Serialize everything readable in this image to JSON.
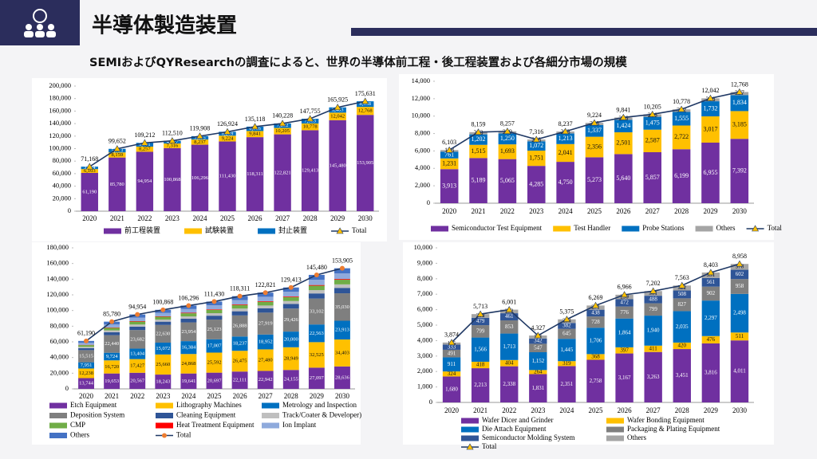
{
  "header": {
    "title": "半導体製造装置",
    "subtitle": "SEMIおよびQYResearchの調査によると、世界の半導体前工程・後工程装置および各細分市場の規模"
  },
  "chart_data": [
    {
      "type": "bar",
      "stacked": true,
      "categories": [
        "2020",
        "2021",
        "2022",
        "2023",
        "2024",
        "2025",
        "2026",
        "2027",
        "2028",
        "2029",
        "2030"
      ],
      "ylim": [
        0,
        200000
      ],
      "yticks": [
        0,
        {
          "value": 20000,
          "label": "20,000"
        },
        {
          "value": 40000,
          "label": "40,000"
        },
        {
          "value": 60000,
          "label": "60,000"
        },
        {
          "value": 80000,
          "label": "80,000"
        },
        {
          "value": 100000,
          "label": "100,000"
        },
        {
          "value": 120000,
          "label": "120,000"
        },
        {
          "value": 140000,
          "label": "140,000"
        },
        {
          "value": 160000,
          "label": "160,000"
        },
        {
          "value": 180000,
          "label": "180,000"
        },
        {
          "value": 200000,
          "label": "200,000"
        }
      ],
      "series": [
        {
          "name": "前工程装置",
          "color": "#7030a0",
          "show_labels": true,
          "values": [
            61190,
            85780,
            94954,
            100868,
            106296,
            111430,
            118311,
            122821,
            129413,
            145480,
            153905
          ],
          "value_labels": [
            "61,190",
            "85,780",
            "94,954",
            "100,868",
            "106,296",
            "111,430",
            "118,311",
            "122,821",
            "129,413",
            "145,480",
            "153,905"
          ]
        },
        {
          "name": "試験装置",
          "color": "#ffc000",
          "show_labels": true,
          "values": [
            6103,
            8159,
            8257,
            7316,
            8237,
            9224,
            9841,
            10205,
            10778,
            12042,
            12768
          ],
          "value_labels": [
            "6,103",
            "8,159",
            "8,257",
            "7,316",
            "8,237",
            "9,224",
            "9,841",
            "10,205",
            "10,778",
            "12,042",
            "12,768"
          ]
        },
        {
          "name": "封止装置",
          "color": "#0070c0",
          "show_labels": true,
          "values": [
            3874,
            5713,
            6001,
            4327,
            5375,
            6269,
            6966,
            7202,
            7563,
            8403,
            8958
          ],
          "value_labels": [
            "3,874",
            "5,713",
            "6,001",
            "4,327",
            "5,375",
            "6,269",
            "6,966",
            "7,202",
            "7,563",
            "8,403",
            "8,958"
          ]
        }
      ],
      "total": {
        "name": "Total",
        "color": "#1f3864",
        "marker": "triangle",
        "marker_color": "#ffc000",
        "values": [
          71168,
          99652,
          109212,
          112510,
          119908,
          126924,
          135118,
          140228,
          147755,
          165925,
          175631
        ],
        "value_labels": [
          "71,168",
          "99,652",
          "109,212",
          "112,510",
          "119,908",
          "126,924",
          "135,118",
          "140,228",
          "147,755",
          "165,925",
          "175,631"
        ]
      }
    },
    {
      "type": "bar",
      "stacked": true,
      "categories": [
        "2020",
        "2021",
        "2022",
        "2023",
        "2024",
        "2025",
        "2026",
        "2027",
        "2028",
        "2029",
        "2030"
      ],
      "ylim": [
        0,
        14000
      ],
      "yticks": [
        0,
        {
          "value": 2000,
          "label": "2,000"
        },
        {
          "value": 4000,
          "label": "4,000"
        },
        {
          "value": 6000,
          "label": "6,000"
        },
        {
          "value": 8000,
          "label": "8,000"
        },
        {
          "value": 10000,
          "label": "10,000"
        },
        {
          "value": 12000,
          "label": "12,000"
        },
        {
          "value": 14000,
          "label": "14,000"
        }
      ],
      "series": [
        {
          "name": "Semiconductor Test Equipment",
          "color": "#7030a0",
          "show_labels": true,
          "values": [
            3913,
            5189,
            5065,
            4285,
            4750,
            5273,
            5640,
            5857,
            6199,
            6955,
            7392
          ],
          "value_labels": [
            "3,913",
            "5,189",
            "5,065",
            "4,285",
            "4,750",
            "5,273",
            "5,640",
            "5,857",
            "6,199",
            "6,955",
            "7,392"
          ]
        },
        {
          "name": "Test Handler",
          "color": "#ffc000",
          "show_labels": true,
          "values": [
            1231,
            1515,
            1693,
            1751,
            2041,
            2356,
            2501,
            2587,
            2722,
            3017,
            3185
          ],
          "value_labels": [
            "1,231",
            "1,515",
            "1,693",
            "1,751",
            "2,041",
            "2,356",
            "2,501",
            "2,587",
            "2,722",
            "3,017",
            "3,185"
          ]
        },
        {
          "name": "Probe Stations",
          "color": "#0070c0",
          "show_labels": true,
          "values": [
            761,
            1202,
            1250,
            1072,
            1213,
            1337,
            1424,
            1475,
            1555,
            1732,
            1834
          ],
          "value_labels": [
            "761",
            "1,202",
            "1,250",
            "1,072",
            "1,213",
            "1,337",
            "1,424",
            "1,475",
            "1,555",
            "1,732",
            "1,834"
          ]
        },
        {
          "name": "Others",
          "color": "#a5a5a5",
          "show_labels": true,
          "values": [
            198,
            253,
            249,
            208,
            233,
            258,
            276,
            286,
            302,
            338,
            357
          ]
        }
      ],
      "total": {
        "name": "Total",
        "color": "#1f3864",
        "marker": "triangle",
        "marker_color": "#ffc000",
        "values": [
          6103,
          8159,
          8257,
          7316,
          8237,
          9224,
          9841,
          10205,
          10778,
          12042,
          12768
        ],
        "value_labels": [
          "6,103",
          "8,159",
          "8,257",
          "7,316",
          "8,237",
          "9,224",
          "9,841",
          "10,205",
          "10,778",
          "12,042",
          "12,768"
        ]
      }
    },
    {
      "type": "bar",
      "stacked": true,
      "categories": [
        "2020",
        "2021",
        "2022",
        "2023",
        "2024",
        "2025",
        "2026",
        "2027",
        "2028",
        "2029",
        "2030"
      ],
      "ylim": [
        0,
        180000
      ],
      "yticks": [
        0,
        {
          "value": 20000,
          "label": "20,000"
        },
        {
          "value": 40000,
          "label": "40,000"
        },
        {
          "value": 60000,
          "label": "60,000"
        },
        {
          "value": 80000,
          "label": "80,000"
        },
        {
          "value": 100000,
          "label": "100,000"
        },
        {
          "value": 120000,
          "label": "120,000"
        },
        {
          "value": 140000,
          "label": "140,000"
        },
        {
          "value": 160000,
          "label": "160,000"
        },
        {
          "value": 180000,
          "label": "180,000"
        }
      ],
      "series": [
        {
          "name": "Etch Equipment",
          "color": "#7030a0",
          "show_labels": true,
          "values": [
            13744,
            19653,
            20567,
            18243,
            19641,
            20697,
            22111,
            22942,
            24155,
            27097,
            28636
          ],
          "value_labels": [
            "13,744",
            "19,653",
            "20,567",
            "18,243",
            "19,641",
            "20,697",
            "22,111",
            "22,942",
            "24,155",
            "27,097",
            "28,636"
          ]
        },
        {
          "name": "Lithography Machines",
          "color": "#ffc000",
          "show_labels": true,
          "values": [
            12238,
            16720,
            17427,
            25660,
            24868,
            25592,
            26475,
            27480,
            28949,
            32525,
            34403
          ],
          "value_labels": [
            "12,238",
            "16,720",
            "17,427",
            "25,660",
            "24,868",
            "25,592",
            "26,475",
            "27,480",
            "28,949",
            "32,525",
            "34,403"
          ]
        },
        {
          "name": "Metrology and Inspection",
          "color": "#0070c0",
          "show_labels": true,
          "values": [
            7951,
            9724,
            13404,
            15072,
            16384,
            17007,
            18237,
            18952,
            20000,
            22563,
            23913
          ],
          "value_labels": [
            "7,951",
            "9,724",
            "13,404",
            "15,072",
            "16,384",
            "17,007",
            "18,237",
            "18,952",
            "20,000",
            "22,563",
            "23,913"
          ]
        },
        {
          "name": "Deposition System",
          "color": "#7f7f7f",
          "show_labels": true,
          "values": [
            15515,
            22440,
            23682,
            22630,
            23954,
            25123,
            26888,
            27919,
            29426,
            33102,
            35030
          ],
          "value_labels": [
            "15,515",
            "22,440",
            "23,682",
            "22,630",
            "23,954",
            "25,123",
            "26,888",
            "27,919",
            "29,426",
            "33,102",
            "35,030"
          ]
        },
        {
          "name": "Cleaning Equipment",
          "color": "#2f5597",
          "show_labels": false,
          "values": [
            2536,
            3724,
            4293,
            4161,
            4633,
            4970,
            5314,
            5514,
            5807,
            6522,
            6895
          ]
        },
        {
          "name": "Track/Coater & Developer)",
          "color": "#bfbfbf",
          "show_labels": false,
          "values": [
            1644,
            2414,
            2782,
            2697,
            3003,
            3222,
            3444,
            3574,
            3764,
            4227,
            4469
          ]
        },
        {
          "name": "CMP",
          "color": "#70ad47",
          "show_labels": false,
          "values": [
            2184,
            3207,
            3697,
            3583,
            3990,
            4280,
            4576,
            4748,
            5000,
            5616,
            5938
          ]
        },
        {
          "name": "Heat Treatment Equipment",
          "color": "#ff0000",
          "show_labels": false,
          "values": [
            352,
            517,
            596,
            578,
            643,
            690,
            738,
            766,
            806,
            906,
            958
          ]
        },
        {
          "name": "Ion Implant",
          "color": "#8faadc",
          "show_labels": false,
          "values": [
            2607,
            3828,
            4412,
            4276,
            4762,
            5108,
            5461,
            5667,
            5968,
            6703,
            7087
          ]
        },
        {
          "name": "Others",
          "color": "#4472c4",
          "show_labels": false,
          "values": [
            2419,
            3553,
            4094,
            3968,
            4418,
            4741,
            5067,
            5259,
            5538,
            6219,
            6576
          ]
        }
      ],
      "total": {
        "name": "Total",
        "color": "#1f3864",
        "marker": "circle",
        "marker_color": "#ed7d31",
        "values": [
          61190,
          85780,
          94954,
          100868,
          106296,
          111430,
          118311,
          122821,
          129413,
          145480,
          153905
        ],
        "value_labels": [
          "61,190",
          "85,780",
          "94,954",
          "100,868",
          "106,296",
          "111,430",
          "118,311",
          "122,821",
          "129,413",
          "145,480",
          "153,905"
        ]
      }
    },
    {
      "type": "bar",
      "stacked": true,
      "categories": [
        "2020",
        "2021",
        "2022",
        "2023",
        "2024",
        "2025",
        "2026",
        "2027",
        "2028",
        "2029",
        "2030"
      ],
      "ylim": [
        0,
        10000
      ],
      "yticks": [
        0,
        {
          "value": 1000,
          "label": "1,000"
        },
        {
          "value": 2000,
          "label": "2,000"
        },
        {
          "value": 3000,
          "label": "3,000"
        },
        {
          "value": 4000,
          "label": "4,000"
        },
        {
          "value": 5000,
          "label": "5,000"
        },
        {
          "value": 6000,
          "label": "6,000"
        },
        {
          "value": 7000,
          "label": "7,000"
        },
        {
          "value": 8000,
          "label": "8,000"
        },
        {
          "value": 9000,
          "label": "9,000"
        },
        {
          "value": 10000,
          "label": "10,000"
        }
      ],
      "series": [
        {
          "name": "Wafer Dicer and Grinder",
          "color": "#7030a0",
          "show_labels": true,
          "values": [
            1680,
            2213,
            2338,
            1831,
            2351,
            2758,
            3167,
            3263,
            3451,
            3816,
            4011
          ],
          "value_labels": [
            "1,680",
            "2,213",
            "2,338",
            "1,831",
            "2,351",
            "2,758",
            "3,167",
            "3,263",
            "3,451",
            "3,816",
            "4,011"
          ]
        },
        {
          "name": "Wafer Bonding Equipment",
          "color": "#ffc000",
          "show_labels": true,
          "values": [
            324,
            418,
            404,
            264,
            319,
            368,
            397,
            411,
            420,
            476,
            511
          ]
        },
        {
          "name": "Die Attach Equipment",
          "color": "#0070c0",
          "show_labels": true,
          "values": [
            911,
            1566,
            1713,
            1152,
            1445,
            1706,
            1864,
            1940,
            2035,
            2297,
            2498
          ],
          "value_labels": [
            "911",
            "1,566",
            "1,713",
            "1,152",
            "1,445",
            "1,706",
            "1,864",
            "1,940",
            "2,035",
            "2,297",
            "2,498"
          ]
        },
        {
          "name": "Packaging & Plating Equipment",
          "color": "#7f7f7f",
          "show_labels": true,
          "values": [
            491,
            799,
            853,
            547,
            645,
            728,
            776,
            799,
            827,
            902,
            958
          ]
        },
        {
          "name": "Semiconductor Molding System",
          "color": "#2f5597",
          "show_labels": true,
          "values": [
            333,
            479,
            461,
            342,
            382,
            438,
            472,
            488,
            508,
            561,
            602
          ]
        },
        {
          "name": "Others",
          "color": "#a5a5a5",
          "show_labels": true,
          "values": [
            135,
            238,
            232,
            191,
            233,
            271,
            290,
            301,
            322,
            351,
            378
          ]
        }
      ],
      "total": {
        "name": "Total",
        "color": "#1f3864",
        "marker": "triangle",
        "marker_color": "#ffc000",
        "values": [
          3874,
          5713,
          6001,
          4327,
          5375,
          6269,
          6966,
          7202,
          7563,
          8403,
          8958
        ],
        "value_labels": [
          "3,874",
          "5,713",
          "6,001",
          "4,327",
          "5,375",
          "6,269",
          "6,966",
          "7,202",
          "7,563",
          "8,403",
          "8,958"
        ]
      }
    }
  ]
}
